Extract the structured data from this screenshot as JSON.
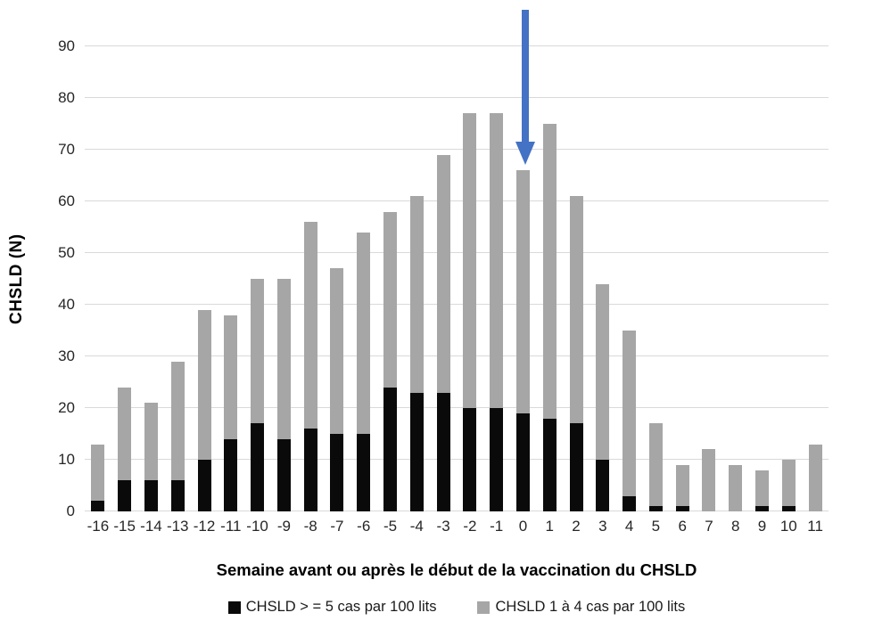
{
  "chart_data": {
    "type": "bar",
    "stacked": true,
    "title": "",
    "xlabel": "Semaine avant ou après le début de la vaccination du CHSLD",
    "ylabel": "CHSLD (N)",
    "ylim": [
      0,
      90
    ],
    "yticks": [
      0,
      10,
      20,
      30,
      40,
      50,
      60,
      70,
      80,
      90
    ],
    "grid": "horizontal",
    "legend_position": "bottom",
    "categories": [
      "-16",
      "-15",
      "-14",
      "-13",
      "-12",
      "-11",
      "-10",
      "-9",
      "-8",
      "-7",
      "-6",
      "-5",
      "-4",
      "-3",
      "-2",
      "-1",
      "0",
      "1",
      "2",
      "3",
      "4",
      "5",
      "6",
      "7",
      "8",
      "9",
      "10",
      "11"
    ],
    "series": [
      {
        "name": "CHSLD > = 5 cas par 100 lits",
        "color": "#0a0a0a",
        "values": [
          2,
          6,
          6,
          6,
          10,
          14,
          17,
          14,
          16,
          15,
          15,
          24,
          23,
          23,
          20,
          20,
          19,
          18,
          17,
          10,
          3,
          1,
          1,
          0,
          0,
          1,
          1,
          0
        ]
      },
      {
        "name": "CHSLD 1 à 4 cas par 100 lits",
        "color": "#a6a6a6",
        "values": [
          11,
          18,
          15,
          23,
          29,
          24,
          28,
          31,
          40,
          32,
          39,
          34,
          38,
          46,
          57,
          57,
          47,
          57,
          44,
          34,
          32,
          16,
          8,
          12,
          9,
          7,
          9,
          13
        ]
      }
    ],
    "totals": [
      13,
      24,
      21,
      29,
      39,
      38,
      45,
      45,
      56,
      47,
      54,
      58,
      61,
      69,
      77,
      77,
      66,
      75,
      61,
      44,
      35,
      17,
      9,
      12,
      9,
      8,
      10,
      13
    ],
    "annotation": {
      "type": "down-arrow",
      "at_category": "0",
      "color": "#4472c4"
    }
  },
  "colors": {
    "gridline": "#d9d9d9",
    "background": "#ffffff"
  }
}
